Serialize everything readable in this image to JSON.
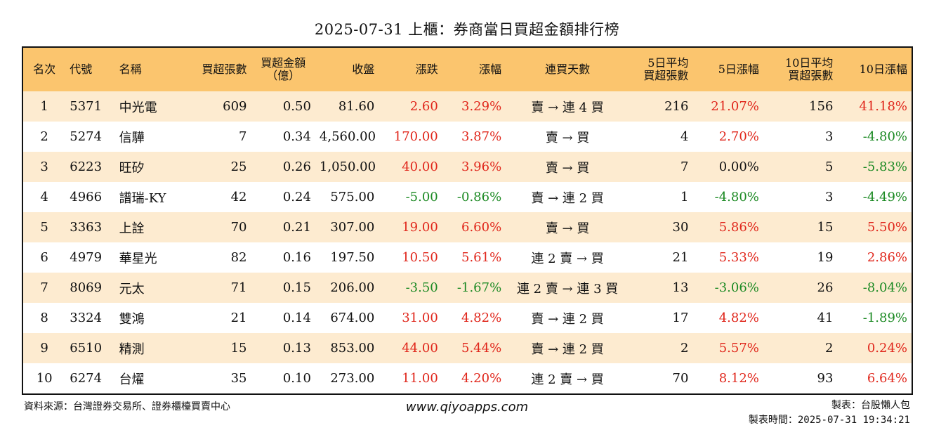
{
  "title": "2025-07-31 上櫃：券商當日買超金額排行榜",
  "headers": {
    "rank": "名次",
    "code": "代號",
    "name": "名稱",
    "net_lots": "買超張數",
    "net_amt_1": "買超金額",
    "net_amt_2": "（億）",
    "close": "收盤",
    "change": "漲跌",
    "pct": "漲幅",
    "streak": "連買天數",
    "avg5_1": "5日平均",
    "avg5_2": "買超張數",
    "pct5": "5日漲幅",
    "avg10_1": "10日平均",
    "avg10_2": "買超張數",
    "pct10": "10日漲幅"
  },
  "rows": [
    {
      "rank": "1",
      "code": "5371",
      "name": "中光電",
      "lots": "609",
      "amt": "0.50",
      "close": "81.60",
      "chg": "2.60",
      "chg_dir": "up",
      "pct": "3.29%",
      "pct_dir": "up",
      "streak": "賣 → 連 4 買",
      "avg5": "216",
      "pct5": "21.07%",
      "pct5_dir": "up",
      "avg10": "156",
      "pct10": "41.18%",
      "pct10_dir": "up"
    },
    {
      "rank": "2",
      "code": "5274",
      "name": "信驊",
      "lots": "7",
      "amt": "0.34",
      "close": "4,560.00",
      "chg": "170.00",
      "chg_dir": "up",
      "pct": "3.87%",
      "pct_dir": "up",
      "streak": "賣 → 買",
      "avg5": "4",
      "pct5": "2.70%",
      "pct5_dir": "up",
      "avg10": "3",
      "pct10": "-4.80%",
      "pct10_dir": "down"
    },
    {
      "rank": "3",
      "code": "6223",
      "name": "旺矽",
      "lots": "25",
      "amt": "0.26",
      "close": "1,050.00",
      "chg": "40.00",
      "chg_dir": "up",
      "pct": "3.96%",
      "pct_dir": "up",
      "streak": "賣 → 買",
      "avg5": "7",
      "pct5": "0.00%",
      "pct5_dir": "flat",
      "avg10": "5",
      "pct10": "-5.83%",
      "pct10_dir": "down"
    },
    {
      "rank": "4",
      "code": "4966",
      "name": "譜瑞-KY",
      "lots": "42",
      "amt": "0.24",
      "close": "575.00",
      "chg": "-5.00",
      "chg_dir": "down",
      "pct": "-0.86%",
      "pct_dir": "down",
      "streak": "賣 → 連 2 買",
      "avg5": "1",
      "pct5": "-4.80%",
      "pct5_dir": "down",
      "avg10": "3",
      "pct10": "-4.49%",
      "pct10_dir": "down"
    },
    {
      "rank": "5",
      "code": "3363",
      "name": "上詮",
      "lots": "70",
      "amt": "0.21",
      "close": "307.00",
      "chg": "19.00",
      "chg_dir": "up",
      "pct": "6.60%",
      "pct_dir": "up",
      "streak": "賣 → 買",
      "avg5": "30",
      "pct5": "5.86%",
      "pct5_dir": "up",
      "avg10": "15",
      "pct10": "5.50%",
      "pct10_dir": "up"
    },
    {
      "rank": "6",
      "code": "4979",
      "name": "華星光",
      "lots": "82",
      "amt": "0.16",
      "close": "197.50",
      "chg": "10.50",
      "chg_dir": "up",
      "pct": "5.61%",
      "pct_dir": "up",
      "streak": "連 2 賣 → 買",
      "avg5": "21",
      "pct5": "5.33%",
      "pct5_dir": "up",
      "avg10": "19",
      "pct10": "2.86%",
      "pct10_dir": "up"
    },
    {
      "rank": "7",
      "code": "8069",
      "name": "元太",
      "lots": "71",
      "amt": "0.15",
      "close": "206.00",
      "chg": "-3.50",
      "chg_dir": "down",
      "pct": "-1.67%",
      "pct_dir": "down",
      "streak": "連 2 賣 → 連 3 買",
      "avg5": "13",
      "pct5": "-3.06%",
      "pct5_dir": "down",
      "avg10": "26",
      "pct10": "-8.04%",
      "pct10_dir": "down"
    },
    {
      "rank": "8",
      "code": "3324",
      "name": "雙鴻",
      "lots": "21",
      "amt": "0.14",
      "close": "674.00",
      "chg": "31.00",
      "chg_dir": "up",
      "pct": "4.82%",
      "pct_dir": "up",
      "streak": "賣 → 連 2 買",
      "avg5": "17",
      "pct5": "4.82%",
      "pct5_dir": "up",
      "avg10": "41",
      "pct10": "-1.89%",
      "pct10_dir": "down"
    },
    {
      "rank": "9",
      "code": "6510",
      "name": "精測",
      "lots": "15",
      "amt": "0.13",
      "close": "853.00",
      "chg": "44.00",
      "chg_dir": "up",
      "pct": "5.44%",
      "pct_dir": "up",
      "streak": "賣 → 連 2 買",
      "avg5": "2",
      "pct5": "5.57%",
      "pct5_dir": "up",
      "avg10": "2",
      "pct10": "0.24%",
      "pct10_dir": "up"
    },
    {
      "rank": "10",
      "code": "6274",
      "name": "台燿",
      "lots": "35",
      "amt": "0.10",
      "close": "273.00",
      "chg": "11.00",
      "chg_dir": "up",
      "pct": "4.20%",
      "pct_dir": "up",
      "streak": "連 2 賣 → 買",
      "avg5": "70",
      "pct5": "8.12%",
      "pct5_dir": "up",
      "avg10": "93",
      "pct10": "6.64%",
      "pct10_dir": "up"
    }
  ],
  "colors": {
    "up": "#e0261b",
    "down": "#1c8a24",
    "header_bg": "#fbc56e",
    "stripe_bg": "#fdebd0"
  },
  "footer": {
    "source": "資料來源：台灣證券交易所、證券櫃檯買賣中心",
    "site": "www.qiyoapps.com",
    "author": "製表：台股懶人包",
    "time": "製表時間：2025-07-31 19:34:21"
  }
}
